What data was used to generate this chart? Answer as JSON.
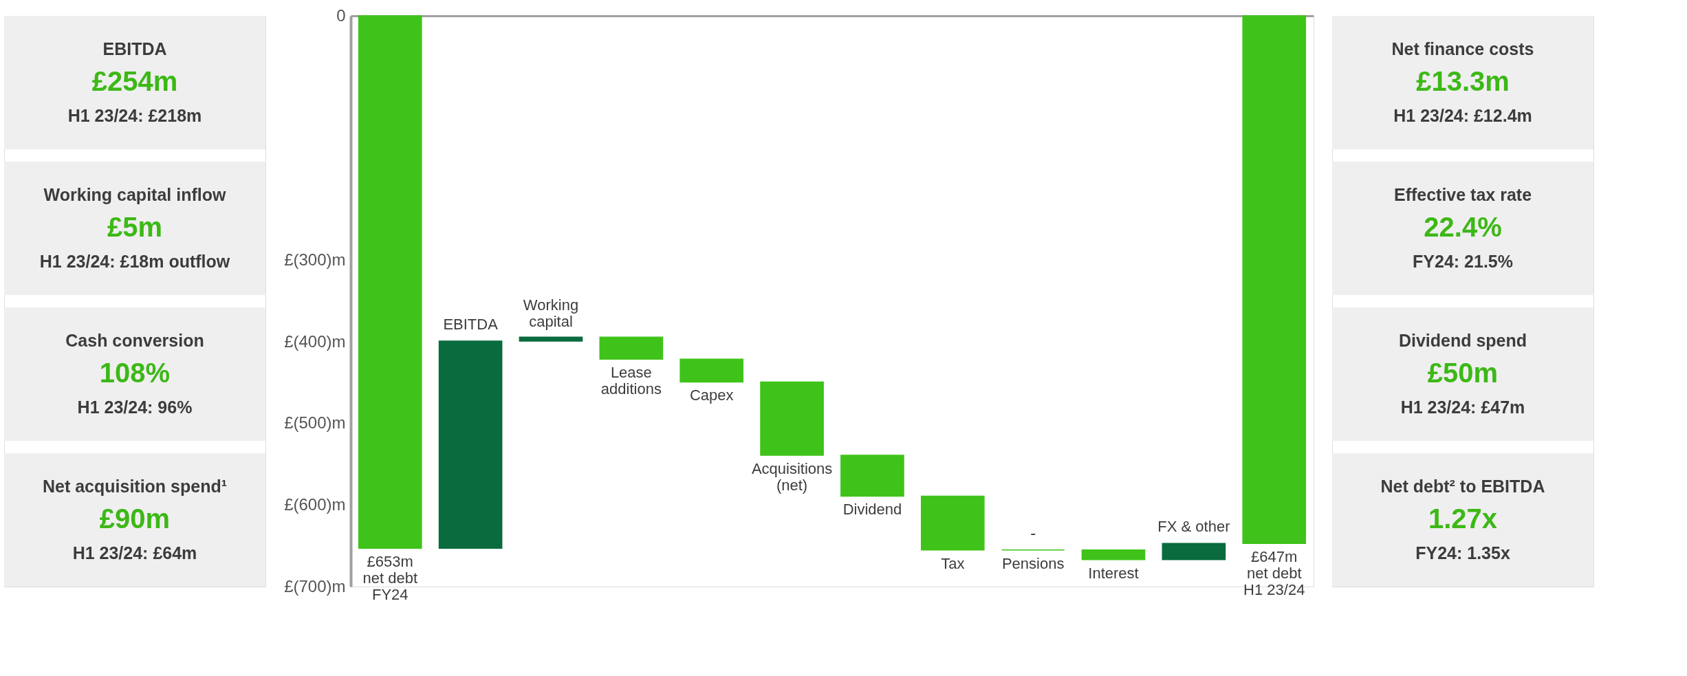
{
  "chart_data": [
    {
      "type": "other",
      "annotations": [
        "EBITDA",
        "£254m",
        "H1 23/24: £218m",
        "Working capital inflow",
        "£5m",
        "H1 23/24: £18m outflow",
        "Cash conversion",
        "108%",
        "H1 23/24: 96%",
        "Net acquisition spend¹",
        "£90m",
        "H1 23/24: £64m"
      ]
    },
    {
      "type": "bar",
      "categories": [
        "£653m\nnet debt\nFY24",
        "EBITDA",
        "Working\ncapital",
        "Lease\nadditions",
        "Capex",
        "Acquisitions\n(net)",
        "Dividend",
        "Tax",
        "Pensions",
        "Interest",
        "FX & other",
        "£647m\nnet debt\nH1 23/24"
      ],
      "values": [
        -653,
        254,
        5,
        -27,
        -28,
        -90,
        -50,
        -66,
        0,
        -12,
        20,
        -647
      ],
      "base": [
        0,
        -653,
        -399,
        -394,
        -421,
        -449,
        -539,
        -589,
        -655,
        -655,
        -667,
        0
      ],
      "colors": [
        "#3fc31a",
        "#0a6b3e",
        "#0a6b3e",
        "#3fc31a",
        "#3fc31a",
        "#3fc31a",
        "#3fc31a",
        "#3fc31a",
        "#3fc31a",
        "#3fc31a",
        "#0a6b3e",
        "#3fc31a"
      ],
      "value_labels": [
        null,
        null,
        null,
        null,
        null,
        null,
        null,
        null,
        "-",
        null,
        null,
        null
      ],
      "ylim": [
        -700,
        0
      ],
      "yticks": [
        0,
        {
          "value": -300,
          "label": "£(300)m"
        },
        {
          "value": -400,
          "label": "£(400)m"
        },
        {
          "value": -500,
          "label": "£(500)m"
        },
        {
          "value": -600,
          "label": "£(600)m"
        },
        {
          "value": -700,
          "label": "£(700)m"
        }
      ],
      "tick_labels": "y",
      "grid": false
    },
    {
      "type": "other",
      "annotations": [
        "Net finance costs",
        "£13.3m",
        "H1 23/24: £12.4m",
        "Effective tax rate",
        "22.4%",
        "FY24: 21.5%",
        "Dividend spend",
        "£50m",
        "H1 23/24: £47m",
        "Net debt² to EBITDA",
        "1.27x",
        "FY24: 1.35x"
      ]
    }
  ]
}
